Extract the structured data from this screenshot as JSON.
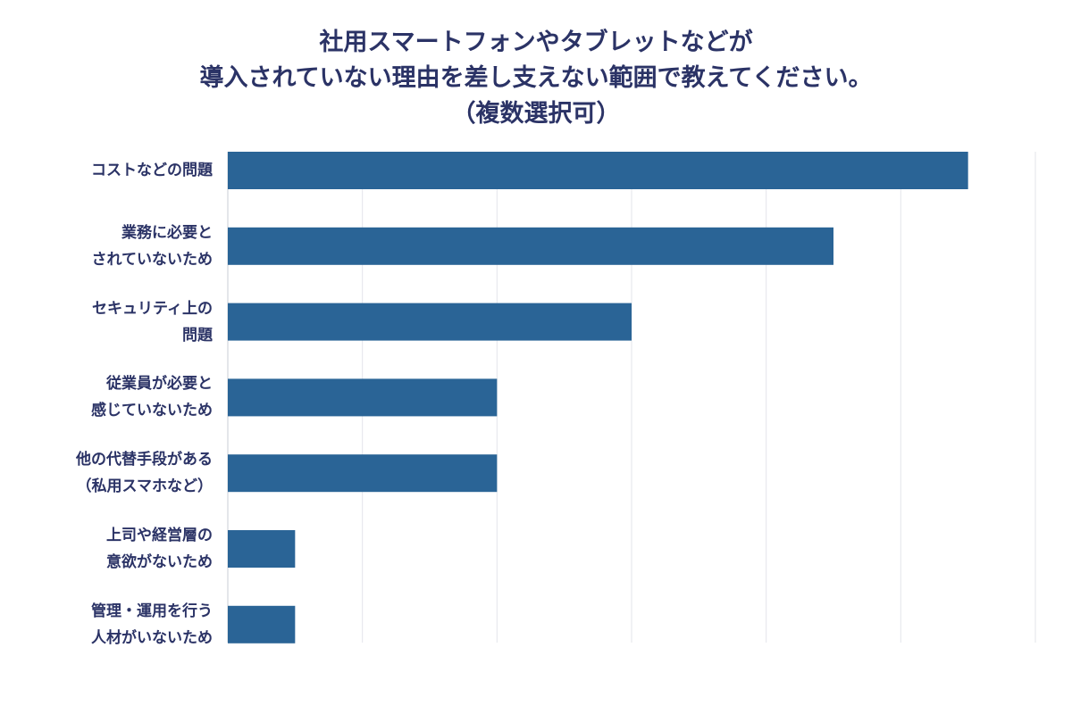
{
  "chart_data": {
    "type": "bar",
    "orientation": "horizontal",
    "title_lines": [
      "社用スマートフォンやタブレットなどが",
      "導入されていない理由を差し支えない範囲で教えてください。",
      "（複数選択可）"
    ],
    "categories": [
      [
        "コストなどの問題"
      ],
      [
        "業務に必要と",
        "されていないため"
      ],
      [
        "セキュリティ上の",
        "問題"
      ],
      [
        "従業員が必要と",
        "感じていないため"
      ],
      [
        "他の代替手段がある",
        "（私用スマホなど）"
      ],
      [
        "上司や経営層の",
        "意欲がないため"
      ],
      [
        "管理・運用を行う",
        "人材がいないため"
      ]
    ],
    "values": [
      5.5,
      4.5,
      3,
      2,
      2,
      0.5,
      0.5
    ],
    "xlim": [
      0,
      6
    ],
    "grid": true,
    "bar_color": "#2a6496",
    "grid_color": "#e3e5ea",
    "text_color": "#2b3366"
  }
}
